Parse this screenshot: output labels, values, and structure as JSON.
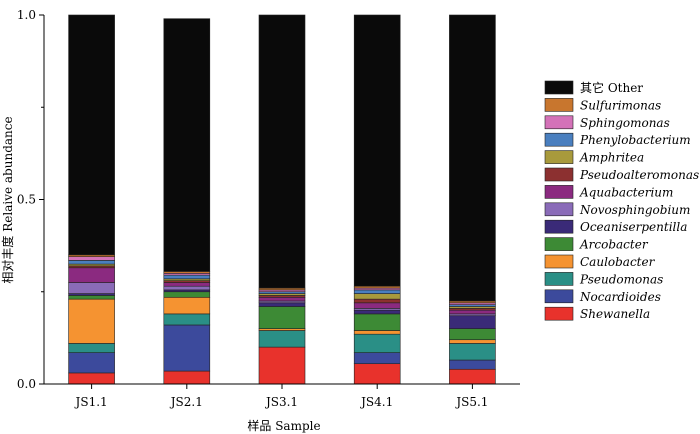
{
  "chart_data": {
    "type": "bar",
    "stacked": true,
    "xlabel": "样品 Sample",
    "ylabel": "相对丰度 Relaive abundance",
    "ylim": [
      0,
      1.0
    ],
    "yticks": [
      "0.0",
      "0.5",
      "1.0"
    ],
    "categories": [
      "JS1.1",
      "JS2.1",
      "JS3.1",
      "JS4.1",
      "JS5.1"
    ],
    "series": [
      {
        "name": "Shewanella",
        "color": "#e8322c",
        "italic": true,
        "values": [
          0.03,
          0.035,
          0.1,
          0.055,
          0.04
        ]
      },
      {
        "name": "Nocardioides",
        "color": "#3c4a9c",
        "italic": true,
        "values": [
          0.055,
          0.125,
          0.0,
          0.03,
          0.025
        ]
      },
      {
        "name": "Pseudomonas",
        "color": "#2a8f86",
        "italic": true,
        "values": [
          0.025,
          0.03,
          0.045,
          0.05,
          0.045
        ]
      },
      {
        "name": "Caulobacter",
        "color": "#f59331",
        "italic": true,
        "values": [
          0.12,
          0.045,
          0.005,
          0.01,
          0.01
        ]
      },
      {
        "name": "Arcobacter",
        "color": "#3d8a35",
        "italic": true,
        "values": [
          0.01,
          0.015,
          0.06,
          0.045,
          0.03
        ]
      },
      {
        "name": "Oceaniserpentilla",
        "color": "#3a2a78",
        "italic": true,
        "values": [
          0.005,
          0.005,
          0.01,
          0.01,
          0.035
        ]
      },
      {
        "name": "Novosphingobium",
        "color": "#8a6bb8",
        "italic": true,
        "values": [
          0.03,
          0.01,
          0.005,
          0.005,
          0.005
        ]
      },
      {
        "name": "Aquabacterium",
        "color": "#8b2a80",
        "italic": true,
        "values": [
          0.04,
          0.01,
          0.01,
          0.015,
          0.01
        ]
      },
      {
        "name": "Pseudoalteromonas",
        "color": "#8c3030",
        "italic": true,
        "values": [
          0.005,
          0.005,
          0.005,
          0.01,
          0.005
        ]
      },
      {
        "name": "Amphritea",
        "color": "#a89a3c",
        "italic": true,
        "values": [
          0.005,
          0.005,
          0.005,
          0.015,
          0.005
        ]
      },
      {
        "name": "Phenylobacterium",
        "color": "#4a7fbf",
        "italic": true,
        "values": [
          0.01,
          0.01,
          0.005,
          0.01,
          0.005
        ]
      },
      {
        "name": "Sphingomonas",
        "color": "#d472b8",
        "italic": true,
        "values": [
          0.01,
          0.005,
          0.005,
          0.005,
          0.005
        ]
      },
      {
        "name": "Sulfurimonas",
        "color": "#c8762e",
        "italic": true,
        "values": [
          0.005,
          0.005,
          0.005,
          0.005,
          0.005
        ]
      },
      {
        "name": "其它 Other",
        "color": "#0a0a0a",
        "italic": false,
        "values": [
          0.65,
          0.685,
          0.74,
          0.735,
          0.775
        ]
      }
    ],
    "legend_position": "right"
  }
}
